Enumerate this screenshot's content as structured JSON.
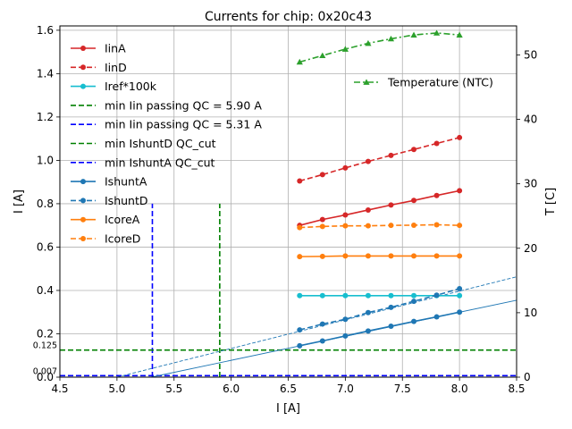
{
  "chart_data": {
    "type": "line",
    "title": "Currents for chip: 0x20c43",
    "xlabel": "I [A]",
    "ylabel": "I [A]",
    "y2label": "T [C]",
    "xlim": [
      4.5,
      8.5
    ],
    "ylim": [
      0.0,
      1.62
    ],
    "y2lim": [
      0,
      54.5
    ],
    "xticks": [
      4.5,
      5.0,
      5.5,
      6.0,
      6.5,
      7.0,
      7.5,
      8.0,
      8.5
    ],
    "yticks": [
      0.0,
      0.2,
      0.4,
      0.6,
      0.8,
      1.0,
      1.2,
      1.4,
      1.6
    ],
    "y2ticks": [
      0,
      10,
      20,
      30,
      40,
      50
    ],
    "grid": true,
    "extra_labels": [
      {
        "text": "0.125",
        "y": 0.125
      },
      {
        "text": "0.007",
        "y": 0.007
      }
    ],
    "x": [
      6.6,
      6.8,
      7.0,
      7.2,
      7.4,
      7.6,
      7.8,
      8.0
    ],
    "series": [
      {
        "name": "IinA",
        "color": "#d62728",
        "dash": "solid",
        "marker": "circle",
        "axis": "left",
        "values": [
          0.7,
          0.727,
          0.748,
          0.771,
          0.794,
          0.815,
          0.838,
          0.86
        ]
      },
      {
        "name": "IinD",
        "color": "#d62728",
        "dash": "dashed",
        "marker": "circle",
        "axis": "left",
        "values": [
          0.905,
          0.934,
          0.965,
          0.995,
          1.023,
          1.05,
          1.078,
          1.105
        ]
      },
      {
        "name": "Iref*100k",
        "color": "#17becf",
        "dash": "solid",
        "marker": "circle",
        "axis": "left",
        "values": [
          0.376,
          0.376,
          0.376,
          0.376,
          0.376,
          0.376,
          0.376,
          0.376
        ]
      },
      {
        "name": "IshuntA",
        "color": "#1f77b4",
        "dash": "solid",
        "marker": "circle",
        "axis": "left",
        "values": [
          0.145,
          0.167,
          0.19,
          0.213,
          0.235,
          0.257,
          0.278,
          0.3
        ]
      },
      {
        "name": "IshuntD",
        "color": "#1f77b4",
        "dash": "dashed",
        "marker": "circle",
        "axis": "left",
        "values": [
          0.218,
          0.245,
          0.267,
          0.298,
          0.322,
          0.35,
          0.378,
          0.408
        ]
      },
      {
        "name": "IcoreA",
        "color": "#ff7f0e",
        "dash": "solid",
        "marker": "circle",
        "axis": "left",
        "values": [
          0.556,
          0.557,
          0.559,
          0.559,
          0.559,
          0.559,
          0.559,
          0.559
        ]
      },
      {
        "name": "IcoreD",
        "color": "#ff7f0e",
        "dash": "dashed",
        "marker": "circle",
        "axis": "left",
        "values": [
          0.69,
          0.695,
          0.698,
          0.698,
          0.7,
          0.701,
          0.703,
          0.7
        ]
      },
      {
        "name": "Temperature (NTC)",
        "color": "#2ca02c",
        "dash": "dashdot",
        "marker": "triangle",
        "axis": "right",
        "values": [
          48.9,
          49.9,
          50.9,
          51.8,
          52.5,
          53.1,
          53.4,
          53.1
        ]
      }
    ],
    "fit_lines": [
      {
        "name": "IshuntA fit",
        "color": "#1f77b4",
        "dash": "solid",
        "x": [
          5.3,
          8.5
        ],
        "y": [
          0.0,
          0.355
        ]
      },
      {
        "name": "IshuntD fit",
        "color": "#1f77b4",
        "dash": "dashed",
        "x": [
          5.0,
          8.5
        ],
        "y": [
          0.0,
          0.463
        ]
      }
    ],
    "reference_lines": [
      {
        "label": "min Iin passing QC = 5.90 A",
        "orient": "vertical",
        "value": 5.9,
        "ymax": 0.8,
        "color": "#008000"
      },
      {
        "label": "min Iin passing QC = 5.31 A",
        "orient": "vertical",
        "value": 5.31,
        "ymax": 0.8,
        "color": "#0000ff"
      },
      {
        "label": "min IshuntD QC_cut",
        "orient": "horizontal",
        "value": 0.125,
        "color": "#008000"
      },
      {
        "label": "min IshuntA QC_cut",
        "orient": "horizontal",
        "value": 0.007,
        "color": "#0000ff"
      }
    ],
    "legend_left": [
      {
        "label": "IinA",
        "color": "#d62728",
        "dash": "solid",
        "marker": "circle"
      },
      {
        "label": "IinD",
        "color": "#d62728",
        "dash": "dashed",
        "marker": "circle"
      },
      {
        "label": "Iref*100k",
        "color": "#17becf",
        "dash": "solid",
        "marker": "circle"
      },
      {
        "label": "min Iin passing QC = 5.90 A",
        "color": "#008000",
        "dash": "dashed",
        "marker": "none"
      },
      {
        "label": "min Iin passing QC = 5.31 A",
        "color": "#0000ff",
        "dash": "dashed",
        "marker": "none"
      },
      {
        "label": "min IshuntD QC_cut",
        "color": "#008000",
        "dash": "dashed",
        "marker": "none"
      },
      {
        "label": "min IshuntA QC_cut",
        "color": "#0000ff",
        "dash": "dashed",
        "marker": "none"
      },
      {
        "label": "IshuntA",
        "color": "#1f77b4",
        "dash": "solid",
        "marker": "circle"
      },
      {
        "label": "IshuntD",
        "color": "#1f77b4",
        "dash": "dashed",
        "marker": "circle"
      },
      {
        "label": "IcoreA",
        "color": "#ff7f0e",
        "dash": "solid",
        "marker": "circle"
      },
      {
        "label": "IcoreD",
        "color": "#ff7f0e",
        "dash": "dashed",
        "marker": "circle"
      }
    ],
    "legend_right": [
      {
        "label": "Temperature (NTC)",
        "color": "#2ca02c",
        "dash": "dashdot",
        "marker": "triangle"
      }
    ],
    "legend_placement": "left: upper-left; right: upper-right"
  }
}
